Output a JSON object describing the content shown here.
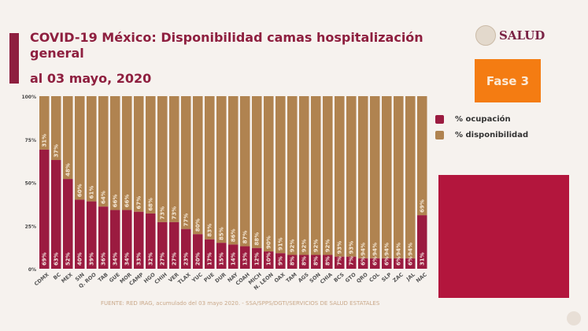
{
  "header": {
    "title": "COVID-19 México: Disponibilidad camas hospitalización general",
    "date": "al 03 mayo, 2020",
    "logo": "SALUD",
    "phase": "Fase 3"
  },
  "footer": "FUENTE: RED IRAG, acumulado del 03 mayo 2020. -  SSA/SPPS/DGTI/SERVICIOS DE SALUD ESTATALES",
  "colors": {
    "ocupacion": "#9b1b40",
    "disponibilidad": "#b08350",
    "phase": "#f47c12"
  },
  "chart_data": {
    "type": "bar",
    "stacked": true,
    "title": "",
    "xlabel": "",
    "ylabel": "",
    "ylim": [
      0,
      100
    ],
    "yticks": [
      "0%",
      "25%",
      "50%",
      "75%",
      "100%"
    ],
    "legend": "right",
    "categories": [
      "CDMX",
      "BC",
      "MEX",
      "SIN",
      "Q. ROO",
      "TAB",
      "GUE",
      "MOR",
      "CAMP",
      "HGO",
      "CHIH",
      "VER",
      "TLAX",
      "YUC",
      "PUE",
      "DUR",
      "NAY",
      "COAH",
      "MICH",
      "N. LEON",
      "OAX",
      "TAM",
      "AGS",
      "SON",
      "CHIA",
      "BCS",
      "GTO",
      "QRO",
      "COL",
      "SLP",
      "ZAC",
      "JAL",
      "NAC"
    ],
    "series": [
      {
        "name": "% ocupación",
        "values": [
          69,
          63,
          52,
          40,
          39,
          36,
          34,
          34,
          33,
          32,
          27,
          27,
          23,
          20,
          17,
          15,
          14,
          13,
          12,
          10,
          9,
          8,
          8,
          8,
          8,
          7,
          7,
          6,
          6,
          6,
          6,
          6,
          31
        ]
      },
      {
        "name": "% disponibilidad",
        "values": [
          31,
          37,
          48,
          60,
          61,
          64,
          66,
          66,
          67,
          68,
          73,
          73,
          77,
          80,
          83,
          85,
          86,
          87,
          88,
          90,
          91,
          92,
          92,
          92,
          92,
          93,
          93,
          94,
          94,
          94,
          94,
          94,
          69
        ]
      }
    ]
  }
}
